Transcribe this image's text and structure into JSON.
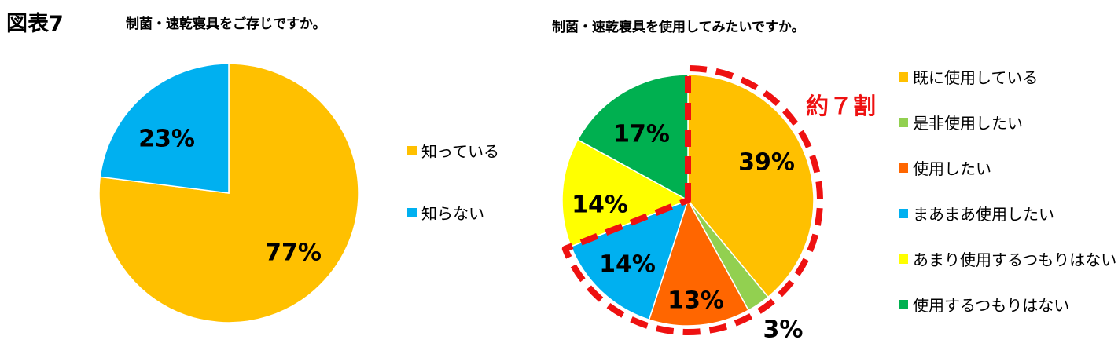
{
  "figure_label": "図表7",
  "chart_data": [
    {
      "type": "pie",
      "title": "制菌・速乾寝具をご存じですか。",
      "slices": [
        {
          "name": "知っている",
          "value": 77,
          "label": "77%",
          "color": "#FFC000"
        },
        {
          "name": "知らない",
          "value": 23,
          "label": "23%",
          "color": "#00B0F0"
        }
      ],
      "legend_position": "right"
    },
    {
      "type": "pie",
      "title": "制菌・速乾寝具を使用してみたいですか。",
      "slices": [
        {
          "name": "既に使用している",
          "value": 39,
          "label": "39%",
          "color": "#FFC000"
        },
        {
          "name": "是非使用したい",
          "value": 3,
          "label": "3%",
          "color": "#92D050"
        },
        {
          "name": "使用したい",
          "value": 13,
          "label": "13%",
          "color": "#FF6600"
        },
        {
          "name": "まあまあ使用したい",
          "value": 14,
          "label": "14%",
          "color": "#00B0F0"
        },
        {
          "name": "あまり使用するつもりはない",
          "value": 14,
          "label": "14%",
          "color": "#FFFF00"
        },
        {
          "name": "使用するつもりはない",
          "value": 17,
          "label": "17%",
          "color": "#00B050"
        }
      ],
      "legend_position": "right",
      "annotation": {
        "text": "約７割",
        "color": "#EE1111"
      }
    }
  ]
}
